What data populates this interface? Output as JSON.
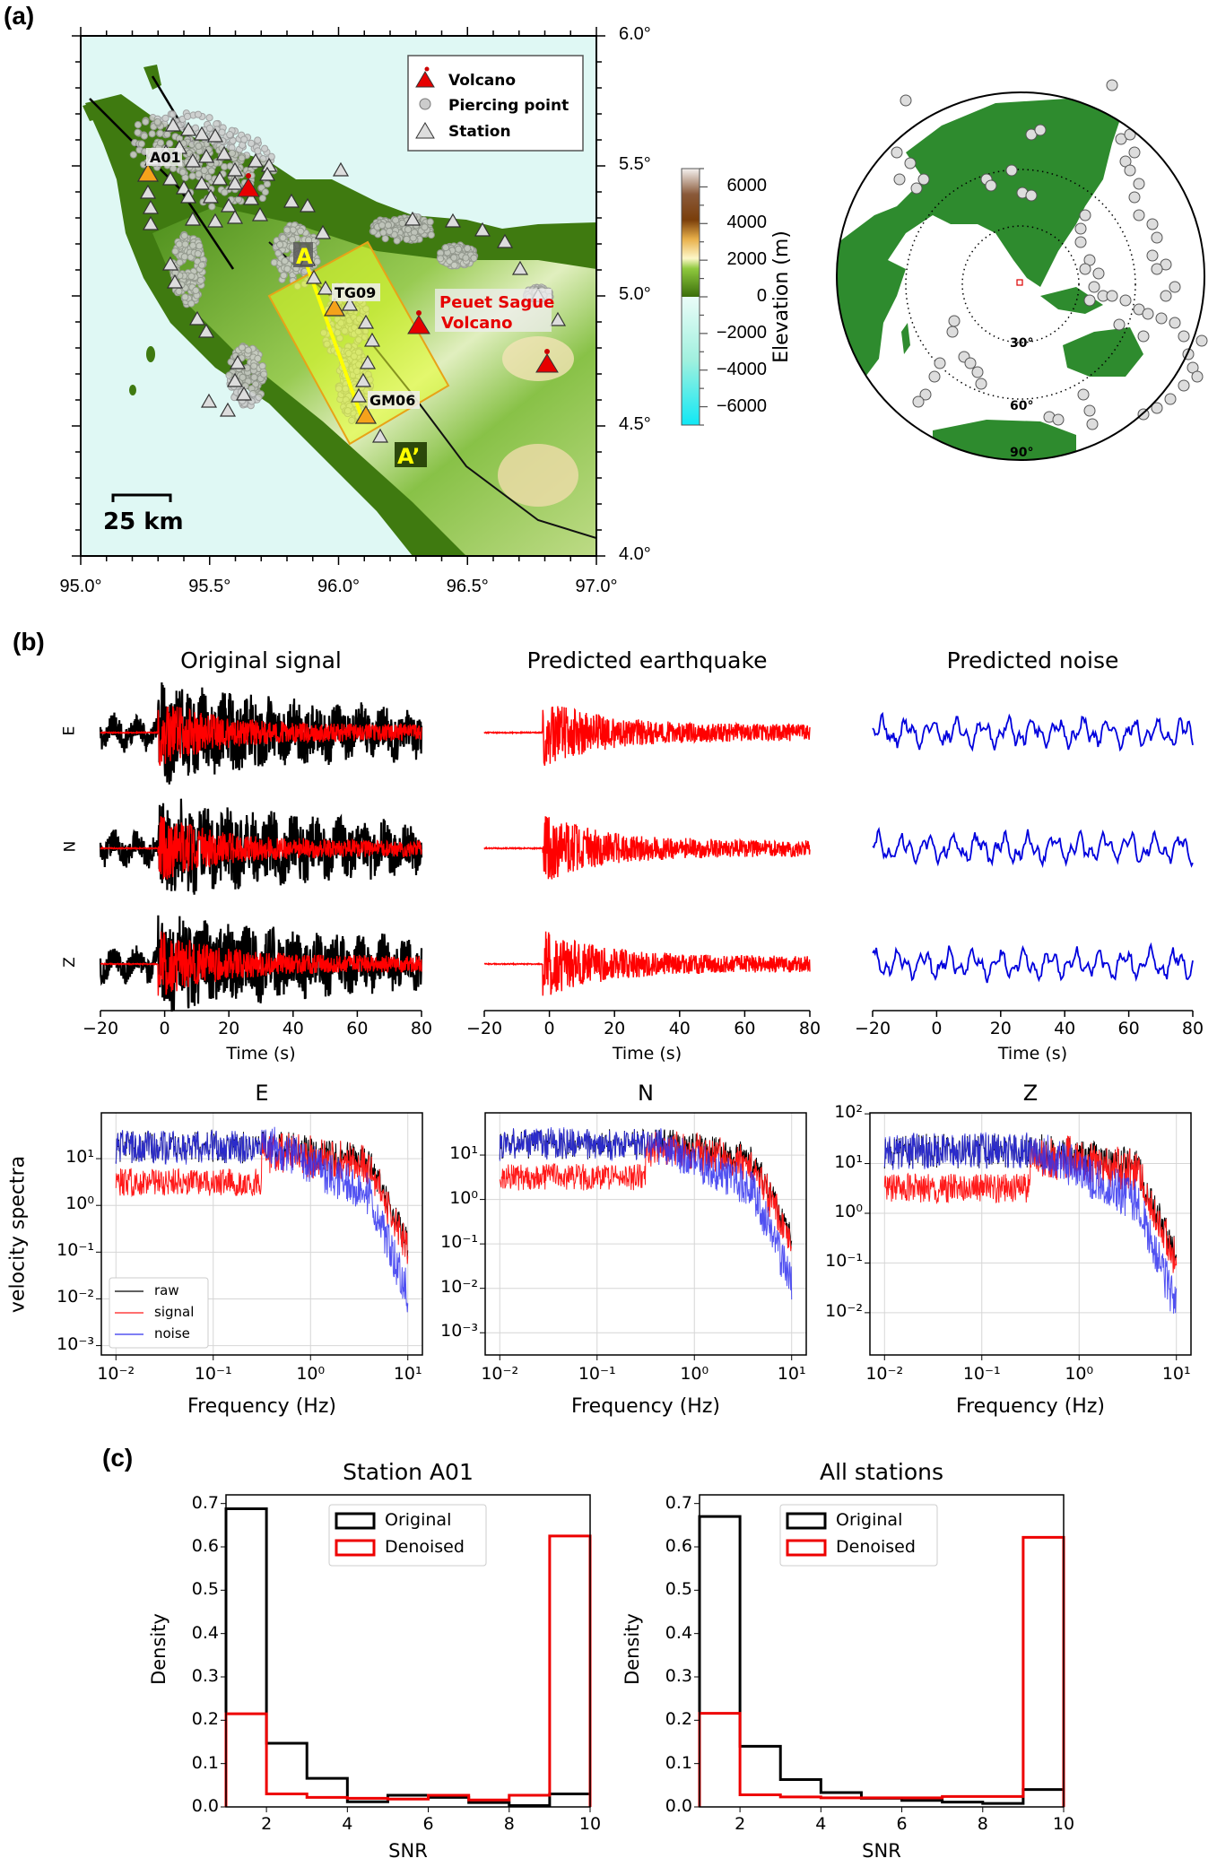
{
  "panels": {
    "a": "(a)",
    "b": "(b)",
    "c": "(c)"
  },
  "map": {
    "lon_ticks": [
      "95.0°",
      "95.5°",
      "96.0°",
      "96.5°",
      "97.0°"
    ],
    "lon_values": [
      95.0,
      95.5,
      96.0,
      96.5,
      97.0
    ],
    "lat_ticks": [
      "6.0°",
      "5.5°",
      "5.0°",
      "4.5°",
      "4.0°"
    ],
    "lat_values": [
      6.0,
      5.5,
      5.0,
      4.5,
      4.0
    ],
    "lon_range": [
      95.0,
      97.0
    ],
    "lat_range": [
      4.0,
      6.0
    ],
    "legend": [
      {
        "icon": "volcano-icon",
        "label": "Volcano"
      },
      {
        "icon": "piercing-point-icon",
        "label": "Piercing point"
      },
      {
        "icon": "station-icon",
        "label": "Station"
      }
    ],
    "labels": {
      "station_a01": "A01",
      "station_tg09": "TG09",
      "station_gm06": "GM06",
      "profile_start": "A",
      "profile_end": "A’",
      "volcano_name_line1": "Peuet Sague",
      "volcano_name_line2": "Volcano",
      "scale_bar": "25 km"
    },
    "colors": {
      "ocean": "#dff8f4",
      "lowland": "#3f7a10",
      "volcano": "#e60000",
      "highlight_station": "#f5a21b",
      "profile_line": "#ffff00",
      "profile_box": "#e8a317"
    },
    "colorbar": {
      "label": "Elevation (m)",
      "ticks": [
        "6000",
        "4000",
        "2000",
        "0",
        "−2000",
        "−4000",
        "−6000"
      ],
      "tick_values": [
        6000,
        4000,
        2000,
        0,
        -2000,
        -4000,
        -6000
      ],
      "range": [
        -7000,
        7000
      ]
    },
    "globe": {
      "rings": [
        "30°",
        "60°",
        "90°"
      ],
      "land_color": "#2e8b2e"
    }
  },
  "waveforms": {
    "columns": [
      "Original signal",
      "Predicted earthquake",
      "Predicted noise"
    ],
    "components": [
      "E",
      "N",
      "Z"
    ],
    "x_ticks": [
      "−20",
      "0",
      "20",
      "40",
      "60",
      "80"
    ],
    "x_tick_values": [
      -20,
      0,
      20,
      40,
      60,
      80
    ],
    "xlabel": "Time (s)",
    "colors": {
      "raw": "#000000",
      "signal": "#ff0000",
      "noise": "#0000dd"
    }
  },
  "spectra": {
    "components": [
      "E",
      "N",
      "Z"
    ],
    "ylabel": "velocity spectra",
    "xlabel": "Frequency (Hz)",
    "x_ticks": [
      "10⁻²",
      "10⁻¹",
      "10⁰",
      "10¹"
    ],
    "y_ticks": {
      "E": [
        "10¹",
        "10⁰",
        "10⁻¹",
        "10⁻²",
        "10⁻³"
      ],
      "N": [
        "10¹",
        "10⁰",
        "10⁻¹",
        "10⁻²",
        "10⁻³"
      ],
      "Z": [
        "10²",
        "10¹",
        "10⁰",
        "10⁻¹",
        "10⁻²"
      ]
    },
    "legend": [
      "raw",
      "signal",
      "noise"
    ]
  },
  "chart_data": [
    {
      "type": "histogram",
      "title": "Station A01",
      "xlabel": "SNR",
      "ylabel": "Density",
      "bin_edges": [
        1,
        2,
        3,
        4,
        5,
        6,
        7,
        8,
        9,
        10
      ],
      "xlim": [
        1,
        10
      ],
      "ylim": [
        0,
        0.72
      ],
      "x_ticks": [
        "2",
        "4",
        "6",
        "8",
        "10"
      ],
      "y_ticks": [
        "0.0",
        "0.1",
        "0.2",
        "0.3",
        "0.4",
        "0.5",
        "0.6",
        "0.7"
      ],
      "legend": "top-center",
      "series": [
        {
          "name": "Original",
          "color": "#000000",
          "values": [
            0.688,
            0.147,
            0.066,
            0.012,
            0.027,
            0.022,
            0.01,
            0.003,
            0.03
          ]
        },
        {
          "name": "Denoised",
          "color": "#ee0000",
          "values": [
            0.215,
            0.03,
            0.022,
            0.02,
            0.018,
            0.027,
            0.016,
            0.027,
            0.625
          ]
        }
      ]
    },
    {
      "type": "histogram",
      "title": "All stations",
      "xlabel": "SNR",
      "ylabel": "Density",
      "bin_edges": [
        1,
        2,
        3,
        4,
        5,
        6,
        7,
        8,
        9,
        10
      ],
      "xlim": [
        1,
        10
      ],
      "ylim": [
        0,
        0.72
      ],
      "x_ticks": [
        "2",
        "4",
        "6",
        "8",
        "10"
      ],
      "y_ticks": [
        "0.0",
        "0.1",
        "0.2",
        "0.3",
        "0.4",
        "0.5",
        "0.6",
        "0.7"
      ],
      "legend": "top-center",
      "series": [
        {
          "name": "Original",
          "color": "#000000",
          "values": [
            0.67,
            0.14,
            0.063,
            0.033,
            0.02,
            0.015,
            0.011,
            0.008,
            0.04
          ]
        },
        {
          "name": "Denoised",
          "color": "#ee0000",
          "values": [
            0.216,
            0.028,
            0.023,
            0.021,
            0.021,
            0.021,
            0.024,
            0.024,
            0.622
          ]
        }
      ]
    }
  ]
}
